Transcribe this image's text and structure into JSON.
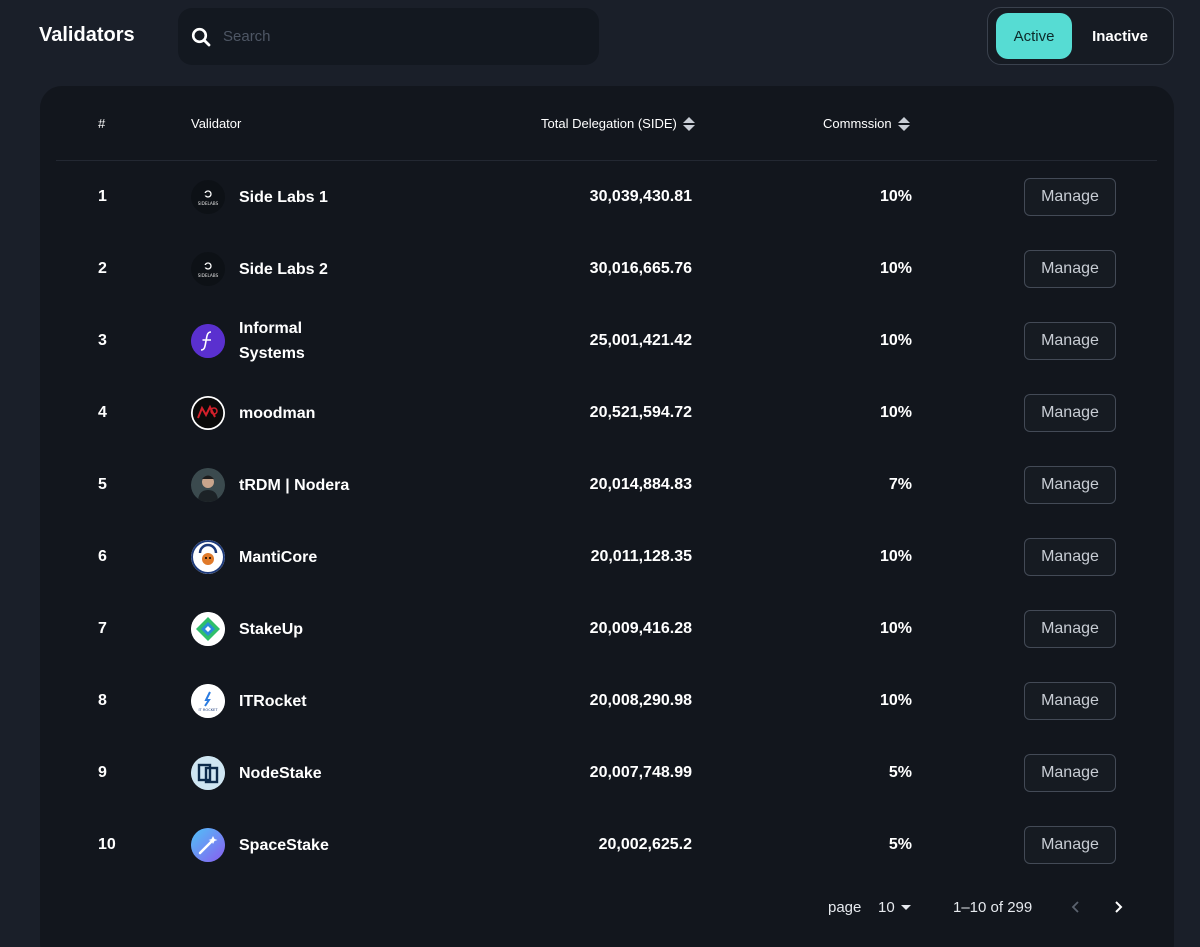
{
  "header": {
    "title": "Validators",
    "search": {
      "placeholder": "Search",
      "value": ""
    },
    "status_toggle": {
      "active_label": "Active",
      "inactive_label": "Inactive",
      "selected": "Active"
    }
  },
  "colors": {
    "accent": "#56dcd3",
    "background": "#1a1f29",
    "card": "#12161d"
  },
  "table": {
    "columns": {
      "rank": "#",
      "validator": "Validator",
      "delegation": "Total Delegation (SIDE)",
      "commission": "Commssion"
    },
    "manage_label": "Manage",
    "rows": [
      {
        "rank": "1",
        "name": "Side Labs 1",
        "delegation": "30,039,430.81",
        "commission": "10%",
        "avatar": "sidelabs-logo-icon",
        "avatar_text": "SIDELABS"
      },
      {
        "rank": "2",
        "name": "Side Labs 2",
        "delegation": "30,016,665.76",
        "commission": "10%",
        "avatar": "sidelabs-logo-icon",
        "avatar_text": "SIDELABS"
      },
      {
        "rank": "3",
        "name": "Informal Systems",
        "delegation": "25,001,421.42",
        "commission": "10%",
        "avatar": "informal-logo-icon"
      },
      {
        "rank": "4",
        "name": "moodman",
        "delegation": "20,521,594.72",
        "commission": "10%",
        "avatar": "moodman-logo-icon"
      },
      {
        "rank": "5",
        "name": "tRDM | Nodera",
        "delegation": "20,014,884.83",
        "commission": "7%",
        "avatar": "nodera-avatar-icon"
      },
      {
        "rank": "6",
        "name": "MantiCore",
        "delegation": "20,011,128.35",
        "commission": "10%",
        "avatar": "manticore-logo-icon"
      },
      {
        "rank": "7",
        "name": "StakeUp",
        "delegation": "20,009,416.28",
        "commission": "10%",
        "avatar": "stakeup-logo-icon"
      },
      {
        "rank": "8",
        "name": "ITRocket",
        "delegation": "20,008,290.98",
        "commission": "10%",
        "avatar": "itrocket-logo-icon",
        "avatar_text": "IT ROCKET"
      },
      {
        "rank": "9",
        "name": "NodeStake",
        "delegation": "20,007,748.99",
        "commission": "5%",
        "avatar": "nodestake-logo-icon"
      },
      {
        "rank": "10",
        "name": "SpaceStake",
        "delegation": "20,002,625.2",
        "commission": "5%",
        "avatar": "spacestake-logo-icon"
      }
    ]
  },
  "pagination": {
    "page_label": "page",
    "page_size": "10",
    "range": "1–10 of 299"
  }
}
